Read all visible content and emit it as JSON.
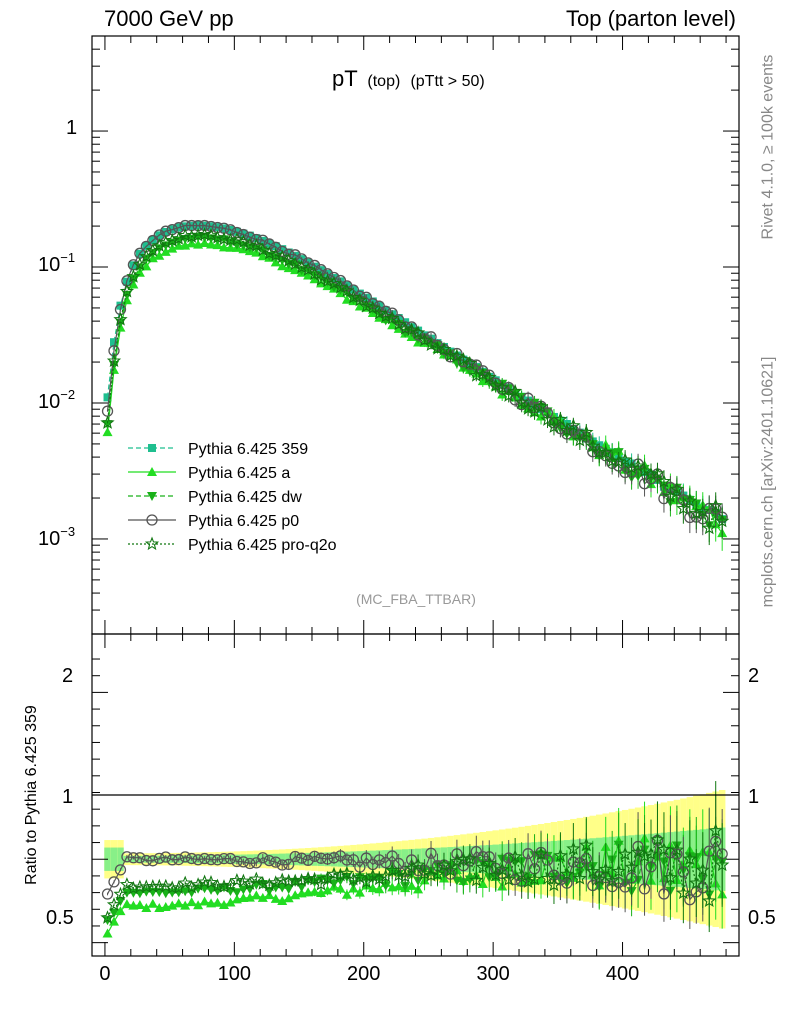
{
  "header": {
    "left": "7000 GeV pp",
    "right": "Top (parton level)"
  },
  "side_labels": {
    "top": "Rivet 4.1.0, ≥ 100k events",
    "bottom": "mcplots.cern.ch [arXiv:2401.10621]"
  },
  "chart_data": [
    {
      "type": "line",
      "title": "pT",
      "title_sub": "(top)",
      "title_cut": "(pTtt > 50)",
      "analysis": "(MC_FBA_TTBAR)",
      "xlabel": "",
      "ylabel": "",
      "xlim": [
        -10,
        490
      ],
      "ylim": [
        0.0002,
        5
      ],
      "yscale": "log",
      "ytick_labels": [
        {
          "value": 1,
          "base": "1",
          "exp": ""
        },
        {
          "value": 0.1,
          "base": "10",
          "exp": "−1"
        },
        {
          "value": 0.01,
          "base": "10",
          "exp": "−2"
        },
        {
          "value": 0.001,
          "base": "10",
          "exp": "−3"
        }
      ],
      "legend_position": "left-lower",
      "series": [
        {
          "name": "Pythia 6.425 359",
          "color": "#1fbf8f",
          "marker": "square",
          "dash": "dashed",
          "scale": 1.06
        },
        {
          "name": "Pythia 6.425 a",
          "color": "#22dd22",
          "marker": "triangle-up",
          "dash": "solid",
          "scale": 0.72
        },
        {
          "name": "Pythia 6.425 dw",
          "color": "#19b119",
          "marker": "triangle-down",
          "dash": "dashed",
          "scale": 0.8
        },
        {
          "name": "Pythia 6.425 p0",
          "color": "#555555",
          "marker": "circle-open",
          "dash": "solid",
          "scale": 1.0
        },
        {
          "name": "Pythia 6.425 pro-q2o",
          "color": "#117711",
          "marker": "star-open",
          "dash": "dotted",
          "scale": 0.84
        }
      ],
      "x": [
        2,
        7,
        12,
        17,
        22,
        27,
        32,
        37,
        42,
        47,
        52,
        57,
        62,
        67,
        72,
        77,
        82,
        87,
        92,
        97,
        102,
        107,
        112,
        117,
        122,
        127,
        132,
        137,
        142,
        147,
        152,
        157,
        162,
        167,
        172,
        177,
        182,
        187,
        192,
        197,
        202,
        207,
        212,
        217,
        222,
        227,
        232,
        237,
        242,
        247,
        252,
        257,
        262,
        267,
        272,
        277,
        282,
        287,
        292,
        297,
        302,
        307,
        312,
        317,
        322,
        327,
        332,
        337,
        342,
        347,
        352,
        357,
        362,
        367,
        372,
        377,
        382,
        387,
        392,
        397,
        402,
        407,
        412,
        417,
        422,
        427,
        432,
        437,
        442,
        447,
        452,
        457,
        462,
        467,
        472,
        477
      ],
      "reference_values": [
        0.011,
        0.028,
        0.052,
        0.078,
        0.103,
        0.125,
        0.143,
        0.158,
        0.171,
        0.181,
        0.189,
        0.195,
        0.199,
        0.201,
        0.202,
        0.201,
        0.199,
        0.196,
        0.192,
        0.187,
        0.182,
        0.176,
        0.17,
        0.163,
        0.156,
        0.149,
        0.142,
        0.135,
        0.128,
        0.121,
        0.114,
        0.108,
        0.101,
        0.095,
        0.089,
        0.083,
        0.078,
        0.073,
        0.068,
        0.064,
        0.0595,
        0.0555,
        0.0517,
        0.0482,
        0.0449,
        0.0419,
        0.0391,
        0.0364,
        0.034,
        0.0317,
        0.0296,
        0.0276,
        0.0257,
        0.024,
        0.0224,
        0.0209,
        0.0195,
        0.0182,
        0.017,
        0.0158,
        0.0148,
        0.0138,
        0.0129,
        0.012,
        0.0112,
        0.0105,
        0.0098,
        0.0091,
        0.0085,
        0.0079,
        0.0074,
        0.0069,
        0.0064,
        0.006,
        0.0056,
        0.0052,
        0.0049,
        0.0046,
        0.0043,
        0.004,
        0.0037,
        0.0035,
        0.0033,
        0.0031,
        0.0029,
        0.0027,
        0.0025,
        0.0023,
        0.0022,
        0.0021,
        0.0019,
        0.0018,
        0.0017,
        0.0016,
        0.0015,
        0.0014
      ]
    },
    {
      "type": "line",
      "ylabel": "Ratio to Pythia 6.425 359",
      "xlabel": "",
      "xlim": [
        -10,
        490
      ],
      "ylim": [
        0.42,
        2.35
      ],
      "reference_line": 1,
      "xticks": [
        0,
        100,
        200,
        300,
        400
      ],
      "ytick_labels": [
        "2",
        "1",
        "0.5"
      ],
      "ytick_values": [
        2,
        1,
        0.5
      ],
      "uncertainty_bands": [
        {
          "name": "outer",
          "color": "#ffff88"
        },
        {
          "name": "inner",
          "color": "#88f088"
        }
      ]
    }
  ]
}
